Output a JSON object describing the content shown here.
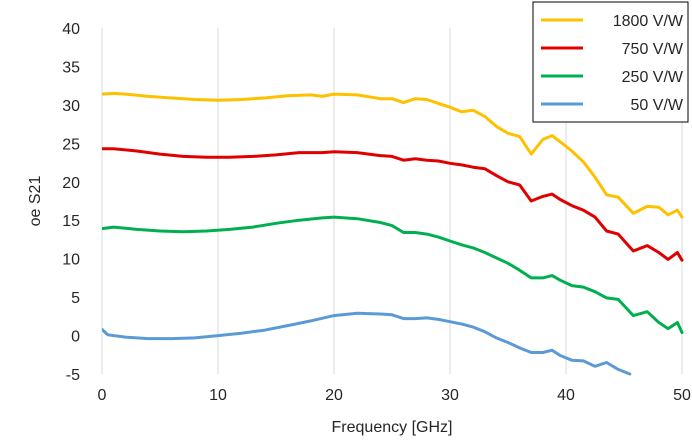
{
  "chart_data": {
    "type": "line",
    "xlabel": "Frequency [GHz]",
    "ylabel": "oe S21",
    "xlim": [
      0,
      50
    ],
    "ylim": [
      -5,
      40
    ],
    "x_ticks": [
      "0",
      "10",
      "20",
      "30",
      "40",
      "50"
    ],
    "y_ticks": [
      "-5",
      "0",
      "5",
      "10",
      "15",
      "20",
      "25",
      "30",
      "35",
      "40"
    ],
    "grid": "vertical",
    "legend": "top-right",
    "series": [
      {
        "name": "1800 V/W",
        "color": "#FFC000",
        "points": [
          [
            0,
            31.4
          ],
          [
            1,
            31.5
          ],
          [
            2,
            31.4
          ],
          [
            4,
            31.1
          ],
          [
            6,
            30.9
          ],
          [
            8,
            30.7
          ],
          [
            10,
            30.6
          ],
          [
            12,
            30.7
          ],
          [
            14,
            30.9
          ],
          [
            16,
            31.2
          ],
          [
            18,
            31.3
          ],
          [
            19,
            31.1
          ],
          [
            20,
            31.4
          ],
          [
            22,
            31.3
          ],
          [
            24,
            30.8
          ],
          [
            25,
            30.8
          ],
          [
            26,
            30.3
          ],
          [
            27,
            30.8
          ],
          [
            28,
            30.7
          ],
          [
            29,
            30.2
          ],
          [
            30,
            29.7
          ],
          [
            31,
            29.1
          ],
          [
            32,
            29.3
          ],
          [
            33,
            28.5
          ],
          [
            34,
            27.2
          ],
          [
            35,
            26.3
          ],
          [
            36,
            25.9
          ],
          [
            37,
            23.6
          ],
          [
            38,
            25.5
          ],
          [
            38.8,
            26.0
          ],
          [
            39.5,
            25.2
          ],
          [
            40.5,
            24.0
          ],
          [
            41.5,
            22.6
          ],
          [
            42.5,
            20.6
          ],
          [
            43.5,
            18.3
          ],
          [
            44.5,
            18.0
          ],
          [
            45.8,
            15.9
          ],
          [
            47,
            16.8
          ],
          [
            48,
            16.7
          ],
          [
            48.8,
            15.7
          ],
          [
            49.6,
            16.3
          ],
          [
            50,
            15.4
          ]
        ]
      },
      {
        "name": "750 V/W",
        "color": "#E00000",
        "points": [
          [
            0,
            24.3
          ],
          [
            1,
            24.3
          ],
          [
            3,
            24.0
          ],
          [
            5,
            23.6
          ],
          [
            7,
            23.3
          ],
          [
            9,
            23.2
          ],
          [
            11,
            23.2
          ],
          [
            13,
            23.3
          ],
          [
            15,
            23.5
          ],
          [
            17,
            23.8
          ],
          [
            19,
            23.8
          ],
          [
            20,
            23.9
          ],
          [
            22,
            23.8
          ],
          [
            24,
            23.4
          ],
          [
            25,
            23.3
          ],
          [
            26,
            22.8
          ],
          [
            27,
            23.0
          ],
          [
            28,
            22.8
          ],
          [
            29,
            22.7
          ],
          [
            30,
            22.4
          ],
          [
            31,
            22.2
          ],
          [
            32,
            21.9
          ],
          [
            33,
            21.7
          ],
          [
            34,
            20.8
          ],
          [
            35,
            20.0
          ],
          [
            36,
            19.6
          ],
          [
            37,
            17.5
          ],
          [
            38,
            18.1
          ],
          [
            38.8,
            18.4
          ],
          [
            39.5,
            17.7
          ],
          [
            40.5,
            16.9
          ],
          [
            41.5,
            16.3
          ],
          [
            42.5,
            15.4
          ],
          [
            43.5,
            13.6
          ],
          [
            44.5,
            13.2
          ],
          [
            45.8,
            11.0
          ],
          [
            47,
            11.7
          ],
          [
            48,
            10.8
          ],
          [
            48.8,
            9.9
          ],
          [
            49.6,
            10.8
          ],
          [
            50,
            9.8
          ]
        ]
      },
      {
        "name": "250 V/W",
        "color": "#00B050",
        "points": [
          [
            0,
            13.9
          ],
          [
            1,
            14.1
          ],
          [
            3,
            13.8
          ],
          [
            5,
            13.6
          ],
          [
            7,
            13.5
          ],
          [
            9,
            13.6
          ],
          [
            11,
            13.8
          ],
          [
            13,
            14.1
          ],
          [
            15,
            14.6
          ],
          [
            17,
            15.0
          ],
          [
            19,
            15.3
          ],
          [
            20,
            15.4
          ],
          [
            22,
            15.2
          ],
          [
            24,
            14.7
          ],
          [
            25,
            14.3
          ],
          [
            26,
            13.4
          ],
          [
            27,
            13.4
          ],
          [
            28,
            13.2
          ],
          [
            29,
            12.8
          ],
          [
            30,
            12.3
          ],
          [
            31,
            11.8
          ],
          [
            32,
            11.4
          ],
          [
            33,
            10.8
          ],
          [
            34,
            10.1
          ],
          [
            35,
            9.4
          ],
          [
            36,
            8.5
          ],
          [
            37,
            7.5
          ],
          [
            38,
            7.5
          ],
          [
            38.8,
            7.8
          ],
          [
            39.5,
            7.2
          ],
          [
            40.5,
            6.5
          ],
          [
            41.5,
            6.3
          ],
          [
            42.5,
            5.7
          ],
          [
            43.5,
            4.9
          ],
          [
            44.5,
            4.7
          ],
          [
            45.8,
            2.6
          ],
          [
            47,
            3.1
          ],
          [
            48,
            1.7
          ],
          [
            48.8,
            0.9
          ],
          [
            49.6,
            1.7
          ],
          [
            50,
            0.4
          ]
        ]
      },
      {
        "name": "50 V/W",
        "color": "#5B9BD5",
        "points": [
          [
            0,
            0.8
          ],
          [
            0.5,
            0.1
          ],
          [
            2,
            -0.2
          ],
          [
            4,
            -0.4
          ],
          [
            6,
            -0.4
          ],
          [
            8,
            -0.3
          ],
          [
            10,
            0.0
          ],
          [
            12,
            0.3
          ],
          [
            14,
            0.7
          ],
          [
            16,
            1.3
          ],
          [
            18,
            1.9
          ],
          [
            20,
            2.6
          ],
          [
            22,
            2.9
          ],
          [
            24,
            2.8
          ],
          [
            25,
            2.7
          ],
          [
            26,
            2.2
          ],
          [
            27,
            2.2
          ],
          [
            28,
            2.3
          ],
          [
            29,
            2.1
          ],
          [
            30,
            1.8
          ],
          [
            31,
            1.5
          ],
          [
            32,
            1.1
          ],
          [
            33,
            0.5
          ],
          [
            34,
            -0.3
          ],
          [
            35,
            -0.9
          ],
          [
            36,
            -1.6
          ],
          [
            37,
            -2.2
          ],
          [
            38,
            -2.2
          ],
          [
            38.8,
            -1.9
          ],
          [
            39.5,
            -2.6
          ],
          [
            40.5,
            -3.2
          ],
          [
            41.5,
            -3.3
          ],
          [
            42.5,
            -4.0
          ],
          [
            43.5,
            -3.5
          ],
          [
            44.5,
            -4.4
          ],
          [
            45.5,
            -5.0
          ]
        ]
      }
    ]
  }
}
